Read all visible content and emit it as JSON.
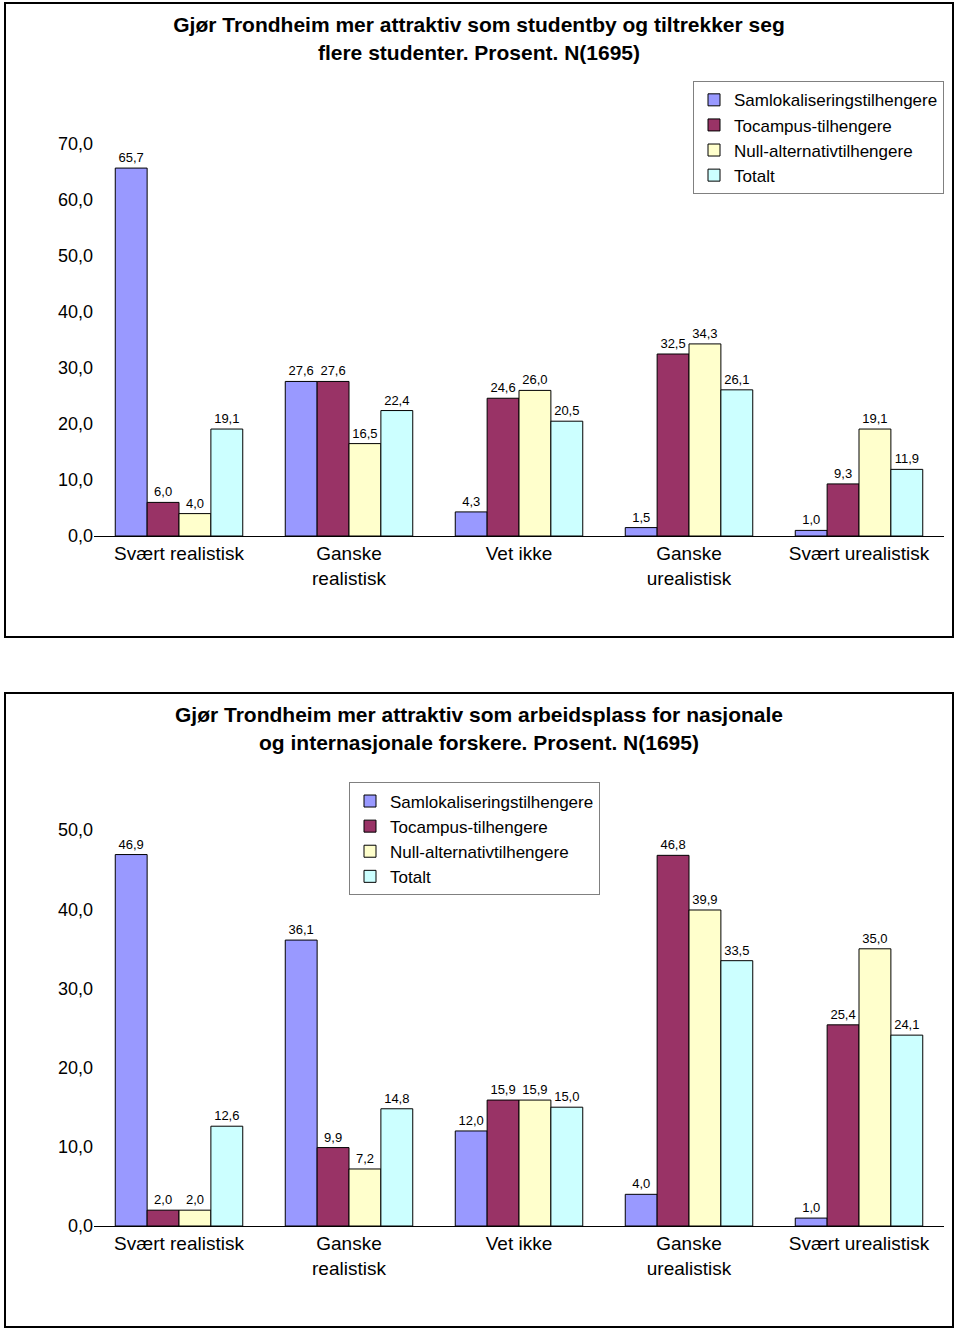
{
  "chart_data": [
    {
      "type": "bar",
      "title": "Gjør Trondheim mer attraktiv som studentby og tiltrekker seg\nflere studenter. Prosent. N(1695)",
      "categories": [
        "Svært realistisk",
        "Ganske\nrealistisk",
        "Vet ikke",
        "Ganske\nurealistisk",
        "Svært urealistisk"
      ],
      "series": [
        {
          "name": "Samlokaliseringstilhengere",
          "color": "#9999ff",
          "values": [
            65.7,
            27.6,
            4.3,
            1.5,
            1.0
          ],
          "value_labels": [
            "65,7",
            "27,6",
            "4,3",
            "1,5",
            "1,0"
          ]
        },
        {
          "name": "Tocampus-tilhengere",
          "color": "#993366",
          "values": [
            6.0,
            27.6,
            24.6,
            32.5,
            9.3
          ],
          "value_labels": [
            "6,0",
            "27,6",
            "24,6",
            "32,5",
            "9,3"
          ]
        },
        {
          "name": "Null-alternativtilhengere",
          "color": "#ffffcc",
          "values": [
            4.0,
            16.5,
            26.0,
            34.3,
            19.1
          ],
          "value_labels": [
            "4,0",
            "16,5",
            "26,0",
            "34,3",
            "19,1"
          ]
        },
        {
          "name": "Totalt",
          "color": "#ccffff",
          "values": [
            19.1,
            22.4,
            20.5,
            26.1,
            11.9
          ],
          "value_labels": [
            "19,1",
            "22,4",
            "20,5",
            "26,1",
            "11,9"
          ]
        }
      ],
      "ylim": [
        0,
        70
      ],
      "yticks": [
        {
          "value": 0,
          "label": "0,0"
        },
        {
          "value": 10,
          "label": "10,0"
        },
        {
          "value": 20,
          "label": "20,0"
        },
        {
          "value": 30,
          "label": "30,0"
        },
        {
          "value": 40,
          "label": "40,0"
        },
        {
          "value": 50,
          "label": "50,0"
        },
        {
          "value": 60,
          "label": "60,0"
        },
        {
          "value": 70,
          "label": "70,0"
        }
      ],
      "grid": false,
      "data_labels": true,
      "legend": "top right"
    },
    {
      "type": "bar",
      "title": "Gjør Trondheim mer attraktiv som arbeidsplass for nasjonale\nog internasjonale forskere. Prosent. N(1695)",
      "categories": [
        "Svært realistisk",
        "Ganske\nrealistisk",
        "Vet ikke",
        "Ganske\nurealistisk",
        "Svært urealistisk"
      ],
      "series": [
        {
          "name": "Samlokaliseringstilhengere",
          "color": "#9999ff",
          "values": [
            46.9,
            36.1,
            12.0,
            4.0,
            1.0
          ],
          "value_labels": [
            "46,9",
            "36,1",
            "12,0",
            "4,0",
            "1,0"
          ]
        },
        {
          "name": "Tocampus-tilhengere",
          "color": "#993366",
          "values": [
            2.0,
            9.9,
            15.9,
            46.8,
            25.4
          ],
          "value_labels": [
            "2,0",
            "9,9",
            "15,9",
            "46,8",
            "25,4"
          ]
        },
        {
          "name": "Null-alternativtilhengere",
          "color": "#ffffcc",
          "values": [
            2.0,
            7.2,
            15.9,
            39.9,
            35.0
          ],
          "value_labels": [
            "2,0",
            "7,2",
            "15,9",
            "39,9",
            "35,0"
          ]
        },
        {
          "name": "Totalt",
          "color": "#ccffff",
          "values": [
            12.6,
            14.8,
            15.0,
            33.5,
            24.1
          ],
          "value_labels": [
            "12,6",
            "14,8",
            "15,0",
            "33,5",
            "24,1"
          ]
        }
      ],
      "ylim": [
        0,
        50
      ],
      "yticks": [
        {
          "value": 0,
          "label": "0,0"
        },
        {
          "value": 10,
          "label": "10,0"
        },
        {
          "value": 20,
          "label": "20,0"
        },
        {
          "value": 30,
          "label": "30,0"
        },
        {
          "value": 40,
          "label": "40,0"
        },
        {
          "value": 50,
          "label": "50,0"
        }
      ],
      "grid": false,
      "data_labels": true,
      "legend": "top center"
    }
  ]
}
